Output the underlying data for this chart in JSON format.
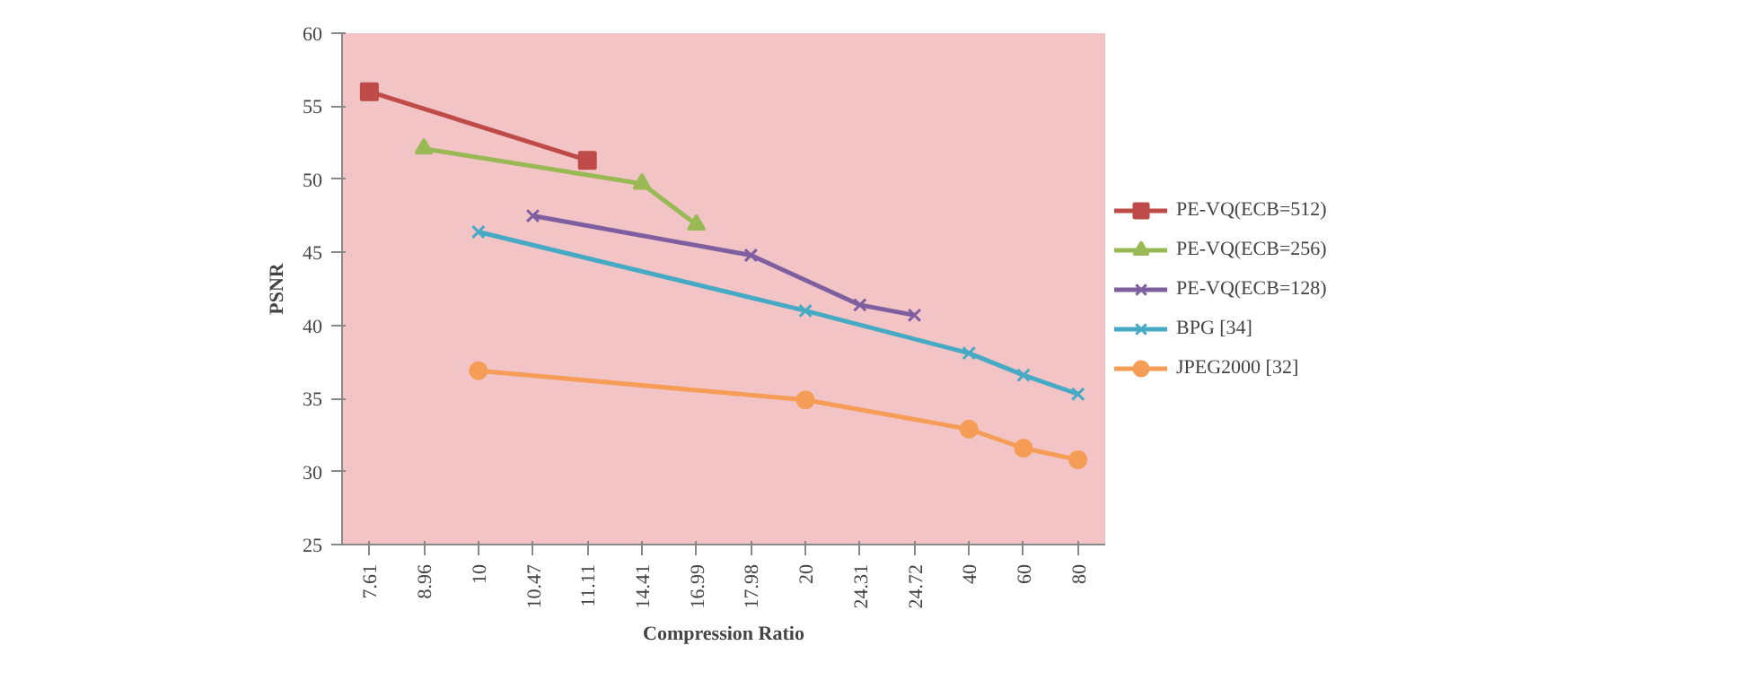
{
  "chart_data": {
    "type": "line",
    "xlabel": "Compression Ratio",
    "ylabel": "PSNR",
    "categories": [
      "7.61",
      "8.96",
      "10",
      "10.47",
      "11.11",
      "14.41",
      "16.99",
      "17.98",
      "20",
      "24.31",
      "24.72",
      "40",
      "60",
      "80"
    ],
    "ylim": [
      25,
      60
    ],
    "yticks": [
      25,
      30,
      35,
      40,
      45,
      50,
      55,
      60
    ],
    "grid": false,
    "legend": "right",
    "series": [
      {
        "name": "PE-VQ(ECB=512)",
        "color": "#be4b48",
        "marker": "square",
        "values": [
          56,
          null,
          null,
          null,
          51.3,
          null,
          null,
          null,
          null,
          null,
          null,
          null,
          null,
          null
        ]
      },
      {
        "name": "PE-VQ(ECB=256)",
        "color": "#98b954",
        "marker": "triangle",
        "values": [
          null,
          52.1,
          null,
          null,
          null,
          49.7,
          46.9,
          null,
          null,
          null,
          null,
          null,
          null,
          null
        ]
      },
      {
        "name": "PE-VQ(ECB=128)",
        "color": "#7d5fa0",
        "marker": "cross",
        "values": [
          null,
          null,
          null,
          47.5,
          null,
          null,
          null,
          44.8,
          null,
          41.4,
          40.7,
          null,
          null,
          null
        ]
      },
      {
        "name": "BPG [34]",
        "color": "#46aac5",
        "marker": "cross",
        "values": [
          null,
          null,
          46.4,
          null,
          null,
          null,
          null,
          null,
          41.0,
          null,
          null,
          38.1,
          36.6,
          35.3
        ]
      },
      {
        "name": "JPEG2000 [32]",
        "color": "#f59d56",
        "marker": "circle",
        "values": [
          null,
          null,
          36.9,
          null,
          null,
          null,
          null,
          null,
          34.9,
          null,
          null,
          32.9,
          31.6,
          30.8
        ]
      }
    ]
  }
}
